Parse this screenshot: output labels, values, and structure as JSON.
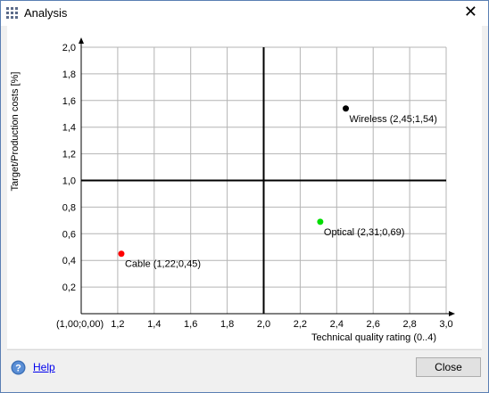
{
  "window": {
    "title": "Analysis",
    "icon": "grid-app-icon"
  },
  "titlebar": {
    "close_glyph": "✕"
  },
  "footer": {
    "help_label": "Help",
    "close_label": "Close"
  },
  "chart_data": {
    "type": "scatter",
    "xlabel": "Technical quality rating (0..4)",
    "ylabel": "Target/Production costs [%]",
    "xlim": [
      1.0,
      3.0
    ],
    "ylim": [
      0.0,
      2.0
    ],
    "origin_label": "(1,00;0,00)",
    "x_ticks": [
      "1,2",
      "1,4",
      "1,6",
      "1,8",
      "2,0",
      "2,2",
      "2,4",
      "2,6",
      "2,8",
      "3,0"
    ],
    "y_ticks": [
      "2,0",
      "1,8",
      "1,6",
      "1,4",
      "1,2",
      "1,0",
      "0,8",
      "0,6",
      "0,4",
      "0,2"
    ],
    "quadrant_lines": {
      "x": 2.0,
      "y": 1.0
    },
    "grid": true,
    "points": [
      {
        "name": "Wireless",
        "x": 2.45,
        "y": 1.54,
        "label": "Wireless (2,45;1,54)",
        "color": "#000000"
      },
      {
        "name": "Optical",
        "x": 2.31,
        "y": 0.69,
        "label": "Optical (2,31;0,69)",
        "color": "#00dd00"
      },
      {
        "name": "Cable",
        "x": 1.22,
        "y": 0.45,
        "label": "Cable (1,22;0,45)",
        "color": "#ff0000"
      }
    ]
  }
}
